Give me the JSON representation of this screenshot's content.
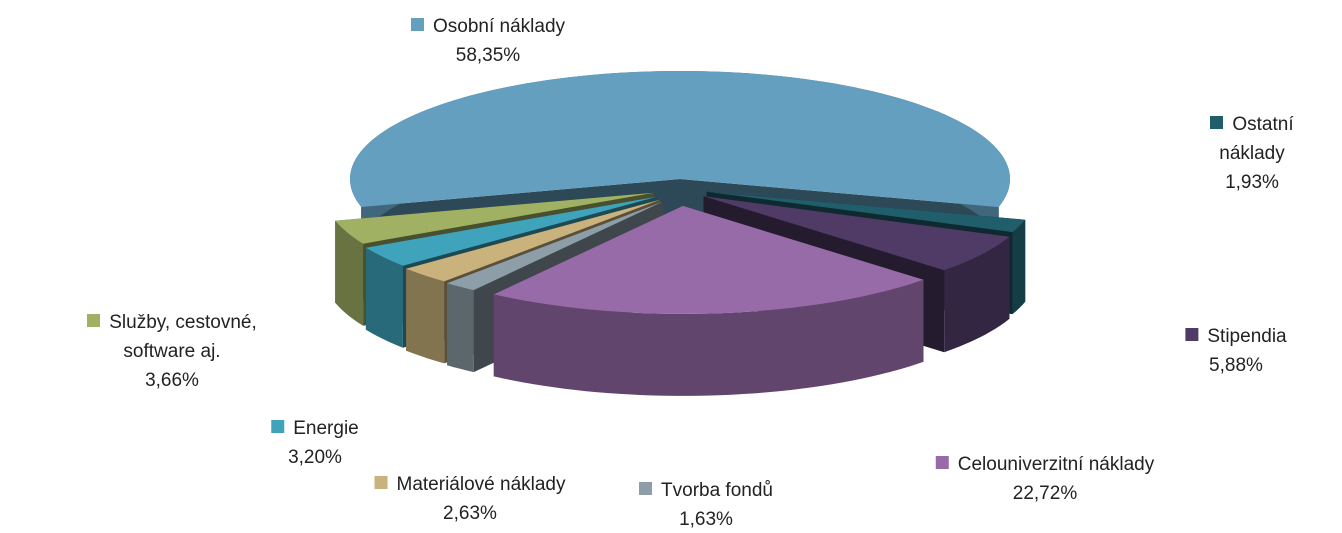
{
  "chart_data": {
    "type": "pie",
    "categories": [
      "Osobní náklady",
      "Ostatní náklady",
      "Stipendia",
      "Celouniverzitní náklady",
      "Tvorba fondů",
      "Materiálové náklady",
      "Energie",
      "Služby, cestovné, software aj."
    ],
    "values": [
      58.35,
      1.93,
      5.88,
      22.72,
      1.63,
      2.63,
      3.2,
      3.66
    ],
    "value_labels": [
      "58,35%",
      "1,93%",
      "5,88%",
      "22,72%",
      "1,63%",
      "2,63%",
      "3,20%",
      "3,66%"
    ],
    "colors": [
      "#659fc0",
      "#1f5e6a",
      "#4f3b66",
      "#976aa8",
      "#8d9ea8",
      "#c9b27b",
      "#3ea3bb",
      "#a0b164"
    ]
  }
}
